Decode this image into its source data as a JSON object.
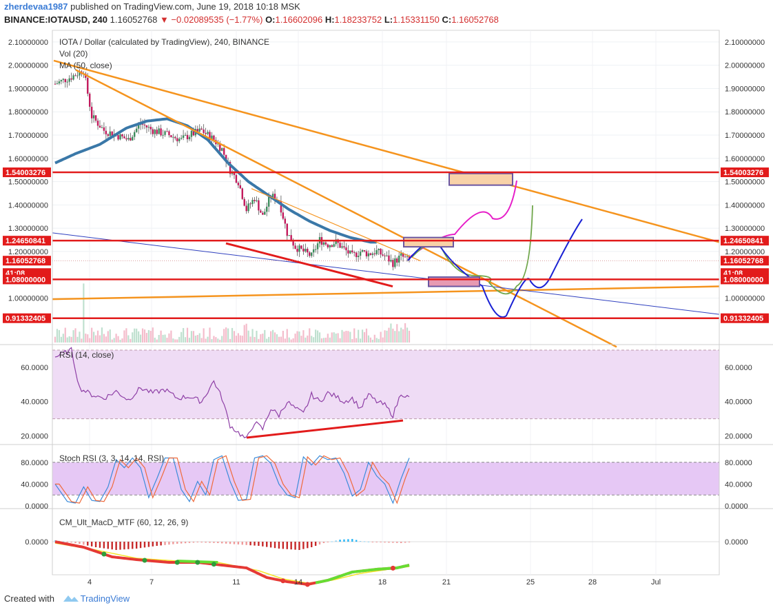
{
  "header": {
    "user": "zherdevaa1987",
    "published": "published on TradingView.com, June 19, 2018 10:18 MSK",
    "symbol": "BINANCE:IOTAUSD, 240",
    "last": "1.16052768",
    "change": "▼ −0.02089535 (−1.77%)",
    "o_label": "O:",
    "o": "1.16602096",
    "h_label": "H:",
    "h": "1.18233752",
    "l_label": "L:",
    "l": "1.15331150",
    "c_label": "C:",
    "c": "1.16052768"
  },
  "footer": {
    "created": "Created with",
    "brand": "TradingView"
  },
  "colors": {
    "up": "#3c8c5c",
    "down": "#c2185b",
    "ma": "#3a78a8",
    "level": "#e21b1b",
    "trend": "#f5941e",
    "channel": "#2e3fbf",
    "rsi": "#8e3fa6",
    "rsiBand": "#efdcf5",
    "stochK": "#3b8bd9",
    "stochD": "#f06a3a",
    "stochBand": "#e6c8f5"
  },
  "chart_data": [
    {
      "type": "candlestick",
      "title": "IOTA / Dollar (calculated by TradingView), 240, BINANCE",
      "indicators": [
        "Vol (20)",
        "MA (50, close)"
      ],
      "x_ticks": [
        "4",
        "7",
        "11",
        "14",
        "18",
        "21",
        "25",
        "28",
        "Jul"
      ],
      "y_ticks": [
        "2.10000000",
        "2.00000000",
        "1.90000000",
        "1.80000000",
        "1.70000000",
        "1.60000000",
        "1.50000000",
        "1.40000000",
        "1.30000000",
        "1.20000000",
        "1.00000000"
      ],
      "ylim": [
        0.8,
        2.15
      ],
      "price_labels": [
        "1.54003276",
        "1.24650841",
        "1.16052768",
        "41:08",
        "1.08000000",
        "0.91332405"
      ],
      "price_levels": [
        1.54003276,
        1.24650841,
        1.08,
        0.91332405
      ],
      "current_price": 1.16052768,
      "close_anchors": [
        [
          0,
          1.92
        ],
        [
          8,
          1.95
        ],
        [
          14,
          1.98
        ],
        [
          18,
          1.78
        ],
        [
          24,
          1.72
        ],
        [
          30,
          1.7
        ],
        [
          36,
          1.68
        ],
        [
          42,
          1.75
        ],
        [
          48,
          1.72
        ],
        [
          56,
          1.7
        ],
        [
          62,
          1.68
        ],
        [
          66,
          1.7
        ],
        [
          72,
          1.72
        ],
        [
          78,
          1.68
        ],
        [
          82,
          1.64
        ],
        [
          86,
          1.55
        ],
        [
          90,
          1.5
        ],
        [
          94,
          1.38
        ],
        [
          98,
          1.43
        ],
        [
          102,
          1.35
        ],
        [
          106,
          1.44
        ],
        [
          110,
          1.42
        ],
        [
          114,
          1.28
        ],
        [
          118,
          1.22
        ],
        [
          122,
          1.2
        ],
        [
          126,
          1.18
        ],
        [
          130,
          1.25
        ],
        [
          134,
          1.23
        ],
        [
          138,
          1.24
        ],
        [
          142,
          1.21
        ],
        [
          146,
          1.18
        ],
        [
          150,
          1.2
        ],
        [
          154,
          1.19
        ],
        [
          158,
          1.2
        ],
        [
          162,
          1.18
        ],
        [
          166,
          1.15
        ],
        [
          170,
          1.18
        ],
        [
          174,
          1.16
        ]
      ],
      "ma_anchors": [
        [
          0,
          1.58
        ],
        [
          10,
          1.62
        ],
        [
          22,
          1.66
        ],
        [
          35,
          1.73
        ],
        [
          45,
          1.76
        ],
        [
          55,
          1.77
        ],
        [
          65,
          1.74
        ],
        [
          75,
          1.68
        ],
        [
          85,
          1.58
        ],
        [
          95,
          1.5
        ],
        [
          105,
          1.44
        ],
        [
          115,
          1.38
        ],
        [
          125,
          1.33
        ],
        [
          135,
          1.29
        ],
        [
          145,
          1.26
        ],
        [
          155,
          1.24
        ],
        [
          158,
          1.24
        ]
      ],
      "rsi": {
        "label": "RSI (14, close)",
        "y_ticks": [
          "60.0000",
          "40.0000",
          "20.0000"
        ],
        "ylim": [
          15,
          72
        ],
        "band": [
          30,
          70
        ],
        "anchors": [
          [
            0,
            66
          ],
          [
            8,
            70
          ],
          [
            12,
            48
          ],
          [
            18,
            44
          ],
          [
            24,
            42
          ],
          [
            30,
            46
          ],
          [
            36,
            41
          ],
          [
            42,
            48
          ],
          [
            48,
            45
          ],
          [
            54,
            47
          ],
          [
            60,
            42
          ],
          [
            66,
            43
          ],
          [
            72,
            40
          ],
          [
            78,
            52
          ],
          [
            82,
            42
          ],
          [
            86,
            26
          ],
          [
            90,
            22
          ],
          [
            94,
            18
          ],
          [
            98,
            28
          ],
          [
            102,
            24
          ],
          [
            106,
            36
          ],
          [
            110,
            32
          ],
          [
            114,
            40
          ],
          [
            118,
            36
          ],
          [
            122,
            33
          ],
          [
            126,
            44
          ],
          [
            130,
            40
          ],
          [
            134,
            45
          ],
          [
            138,
            43
          ],
          [
            142,
            40
          ],
          [
            146,
            42
          ],
          [
            150,
            36
          ],
          [
            154,
            44
          ],
          [
            158,
            40
          ],
          [
            162,
            38
          ],
          [
            166,
            32
          ],
          [
            170,
            45
          ],
          [
            174,
            42
          ]
        ]
      },
      "stoch": {
        "label": "Stoch RSI (3, 3, 14, 14, RSI)",
        "y_ticks": [
          "80.0000",
          "40.0000",
          "0.0000"
        ],
        "ylim": [
          0,
          100
        ],
        "band": [
          20,
          80
        ],
        "anchors": [
          [
            0,
            40
          ],
          [
            6,
            8
          ],
          [
            10,
            5
          ],
          [
            14,
            35
          ],
          [
            18,
            10
          ],
          [
            22,
            8
          ],
          [
            26,
            35
          ],
          [
            30,
            85
          ],
          [
            34,
            70
          ],
          [
            38,
            88
          ],
          [
            42,
            70
          ],
          [
            46,
            15
          ],
          [
            50,
            50
          ],
          [
            54,
            88
          ],
          [
            58,
            88
          ],
          [
            62,
            30
          ],
          [
            66,
            8
          ],
          [
            70,
            45
          ],
          [
            74,
            20
          ],
          [
            78,
            85
          ],
          [
            82,
            92
          ],
          [
            86,
            45
          ],
          [
            90,
            10
          ],
          [
            94,
            12
          ],
          [
            98,
            88
          ],
          [
            102,
            92
          ],
          [
            106,
            78
          ],
          [
            110,
            40
          ],
          [
            114,
            20
          ],
          [
            118,
            15
          ],
          [
            122,
            90
          ],
          [
            126,
            75
          ],
          [
            130,
            92
          ],
          [
            134,
            85
          ],
          [
            138,
            88
          ],
          [
            142,
            60
          ],
          [
            146,
            18
          ],
          [
            150,
            30
          ],
          [
            154,
            80
          ],
          [
            158,
            55
          ],
          [
            162,
            40
          ],
          [
            166,
            5
          ],
          [
            170,
            50
          ],
          [
            174,
            88
          ]
        ]
      },
      "macd": {
        "label": "CM_Ult_MacD_MTF (60, 12, 26, 9)",
        "y_ticks": [
          "0.0000"
        ],
        "hist_anchors": [
          [
            0,
            2
          ],
          [
            10,
            -2
          ],
          [
            20,
            -8
          ],
          [
            30,
            -12
          ],
          [
            40,
            -10
          ],
          [
            50,
            -6
          ],
          [
            60,
            -3
          ],
          [
            70,
            -1
          ],
          [
            80,
            -2
          ],
          [
            90,
            -4
          ],
          [
            100,
            -6
          ],
          [
            110,
            -10
          ],
          [
            120,
            -12
          ],
          [
            126,
            -8
          ],
          [
            132,
            -2
          ],
          [
            140,
            3
          ],
          [
            146,
            4
          ],
          [
            150,
            1
          ],
          [
            160,
            -1
          ],
          [
            170,
            -2
          ],
          [
            174,
            -1
          ]
        ],
        "macd_anchors": [
          [
            0,
            0.0
          ],
          [
            14,
            -8
          ],
          [
            28,
            -22
          ],
          [
            40,
            -26
          ],
          [
            56,
            -30
          ],
          [
            70,
            -30
          ],
          [
            82,
            -34
          ],
          [
            94,
            -38
          ],
          [
            104,
            -52
          ],
          [
            114,
            -58
          ],
          [
            124,
            -62
          ],
          [
            134,
            -56
          ],
          [
            146,
            -44
          ],
          [
            158,
            -40
          ],
          [
            168,
            -38
          ],
          [
            174,
            -34
          ]
        ],
        "signal_anchors": [
          [
            0,
            -2
          ],
          [
            20,
            -12
          ],
          [
            40,
            -24
          ],
          [
            60,
            -28
          ],
          [
            80,
            -30
          ],
          [
            100,
            -42
          ],
          [
            112,
            -54
          ],
          [
            124,
            -60
          ],
          [
            136,
            -56
          ],
          [
            150,
            -46
          ],
          [
            164,
            -40
          ],
          [
            174,
            -36
          ]
        ]
      }
    }
  ]
}
